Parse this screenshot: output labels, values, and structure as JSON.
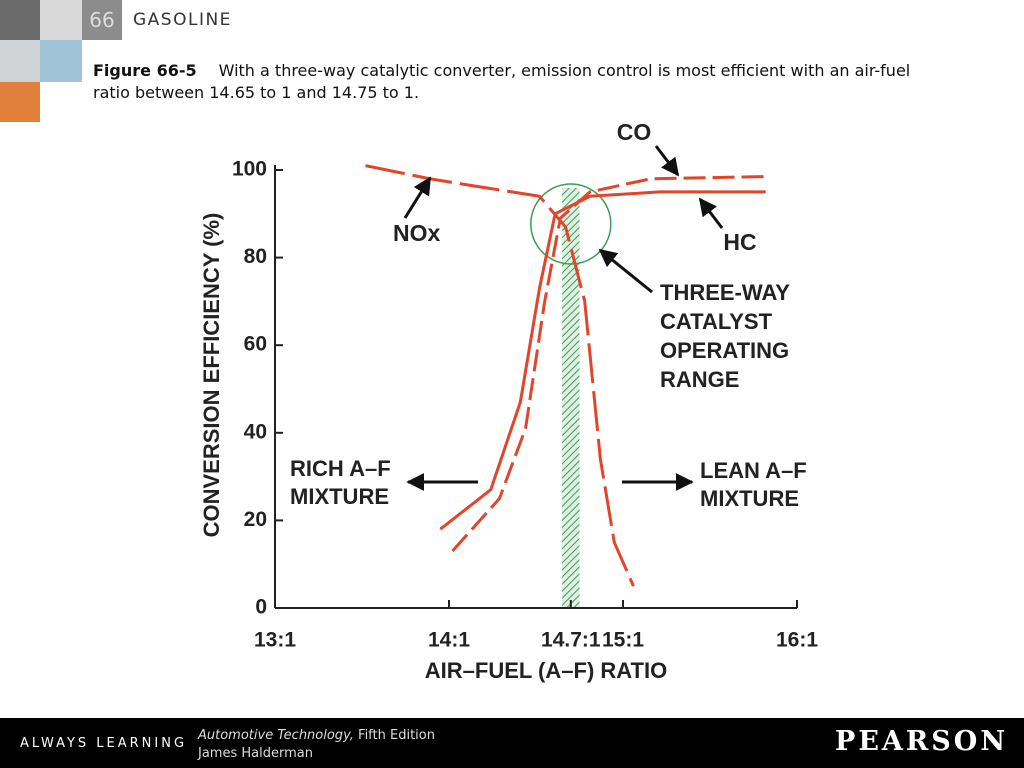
{
  "header": {
    "number": "66",
    "title": "GASOLINE"
  },
  "caption": {
    "label": "Figure 66-5",
    "text": "With a three-way catalytic converter, emission control is most efficient with an air-fuel ratio between 14.65 to 1 and 14.75 to 1."
  },
  "chart_data": {
    "type": "line",
    "y_label": "CONVERSION EFFICIENCY (%)",
    "x_label": "AIR–FUEL (A–F) RATIO",
    "xlim": [
      13,
      16
    ],
    "xticks": [
      {
        "value": 13,
        "label": "13:1"
      },
      {
        "value": 14,
        "label": "14:1"
      },
      {
        "value": 14.7,
        "label": "14.7:1"
      },
      {
        "value": 15,
        "label": "15:1"
      },
      {
        "value": 16,
        "label": "16:1"
      }
    ],
    "ylim": [
      0,
      100
    ],
    "yticks": [
      0,
      20,
      40,
      60,
      80,
      100
    ],
    "operating_range": [
      14.65,
      14.75
    ],
    "series": [
      {
        "name": "NOx",
        "color": "#e2452a",
        "dashed": true,
        "x": [
          13.52,
          13.89,
          14.2,
          14.52,
          14.67,
          14.78,
          14.87,
          14.95,
          15.06
        ],
        "values": [
          101,
          98,
          96,
          94,
          87,
          70,
          34,
          15,
          5
        ]
      },
      {
        "name": "CO",
        "color": "#e2452a",
        "dashed": true,
        "x": [
          14.02,
          14.29,
          14.44,
          14.55,
          14.64,
          14.81,
          15.16,
          15.82
        ],
        "values": [
          13,
          25,
          41,
          70,
          89,
          95,
          98,
          98.5
        ]
      },
      {
        "name": "HC",
        "color": "#e2452a",
        "dashed": false,
        "x": [
          13.95,
          14.24,
          14.41,
          14.52,
          14.61,
          14.81,
          15.21,
          15.82
        ],
        "values": [
          18,
          27,
          47,
          73,
          90,
          94,
          95,
          95
        ]
      }
    ],
    "annotations": {
      "range_label": [
        "THREE-WAY",
        "CATALYST",
        "OPERATING",
        "RANGE"
      ],
      "rich": [
        "RICH A–F",
        "MIXTURE"
      ],
      "lean": [
        "LEAN A–F",
        "MIXTURE"
      ]
    }
  },
  "footer": {
    "tagline": "ALWAYS LEARNING",
    "book": "Automotive Technology,",
    "edition": "Fifth Edition",
    "author": "James Halderman",
    "brand": "PEARSON"
  }
}
